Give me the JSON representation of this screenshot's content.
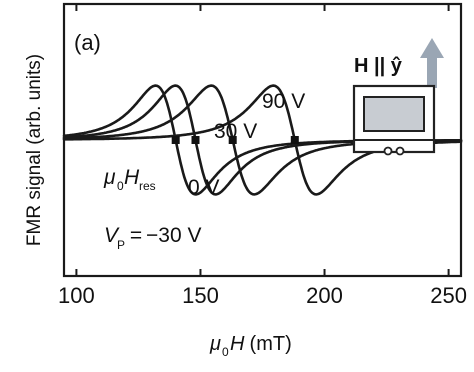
{
  "chart_data": {
    "type": "line",
    "panel_label": "(a)",
    "xlabel_prefix": "μ",
    "xlabel_sub": "0",
    "xlabel_var": "H",
    "xlabel_unit": " (mT)",
    "ylabel": "FMR signal (arb. units)",
    "xlim": [
      95,
      255
    ],
    "ylim": [
      -1.25,
      1.25
    ],
    "x_ticks": [
      100,
      150,
      200,
      250
    ],
    "x_tick_labels": [
      "100",
      "150",
      "200",
      "250"
    ],
    "grid": false,
    "series": [
      {
        "label": "90 V",
        "x0": 188,
        "halfwidth": 15,
        "resonance_marker_x": 188
      },
      {
        "label": "30 V",
        "x0": 163,
        "halfwidth": 15,
        "resonance_marker_x": 163
      },
      {
        "label": "0 V",
        "x0": 148,
        "halfwidth": 14,
        "resonance_marker_x": 148
      },
      {
        "label": "-30 V",
        "x0": 140,
        "halfwidth": 14,
        "resonance_marker_x": 140
      }
    ],
    "annotations": {
      "resonance": {
        "prefix": "μ",
        "sub": "0",
        "var": "H",
        "var_sub": "res"
      },
      "voltage_prefix_var": "V",
      "voltage_prefix_sub": "P",
      "voltage_prefix_eq": " = ",
      "voltage_lowest": "−30 V",
      "label_0V": "0 V",
      "label_30V": "30 V",
      "label_90V": "90 V"
    },
    "inset": {
      "field_text": "H || ŷ",
      "arrow_color": "#9aa6b4",
      "device_screen_color": "#c8ccd2"
    }
  }
}
